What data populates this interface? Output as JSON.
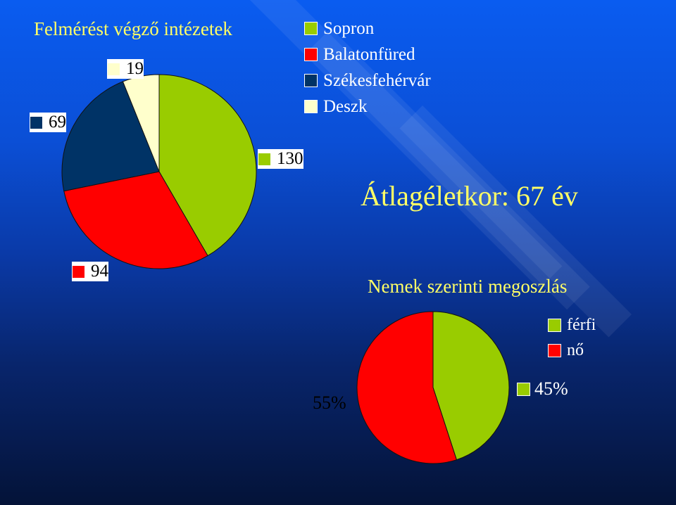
{
  "colors": {
    "sopron": "#99cc00",
    "balatonfured": "#ff0000",
    "szekesfehervar": "#003366",
    "deszk": "#ffffcc",
    "ferfi": "#99cc00",
    "no": "#ff0000"
  },
  "chart_data": [
    {
      "type": "pie",
      "title": "Felmérést végző intézetek",
      "categories": [
        "Sopron",
        "Balatonfüred",
        "Székesfehérvár",
        "Deszk"
      ],
      "values": [
        130,
        94,
        69,
        19
      ],
      "data_labels": [
        "130",
        "94",
        "69",
        "19"
      ],
      "legend": "top-right"
    },
    {
      "type": "pie",
      "title": "Nemek szerinti megoszlás",
      "categories": [
        "férfi",
        "nő"
      ],
      "values": [
        45,
        55
      ],
      "data_labels": [
        "45%",
        "55%"
      ],
      "legend": "top-right"
    }
  ],
  "texts": {
    "title": "Felmérést végző intézetek",
    "average_age": "Átlagéletkor: 67 év",
    "gender_title": "Nemek szerinti megoszlás"
  }
}
